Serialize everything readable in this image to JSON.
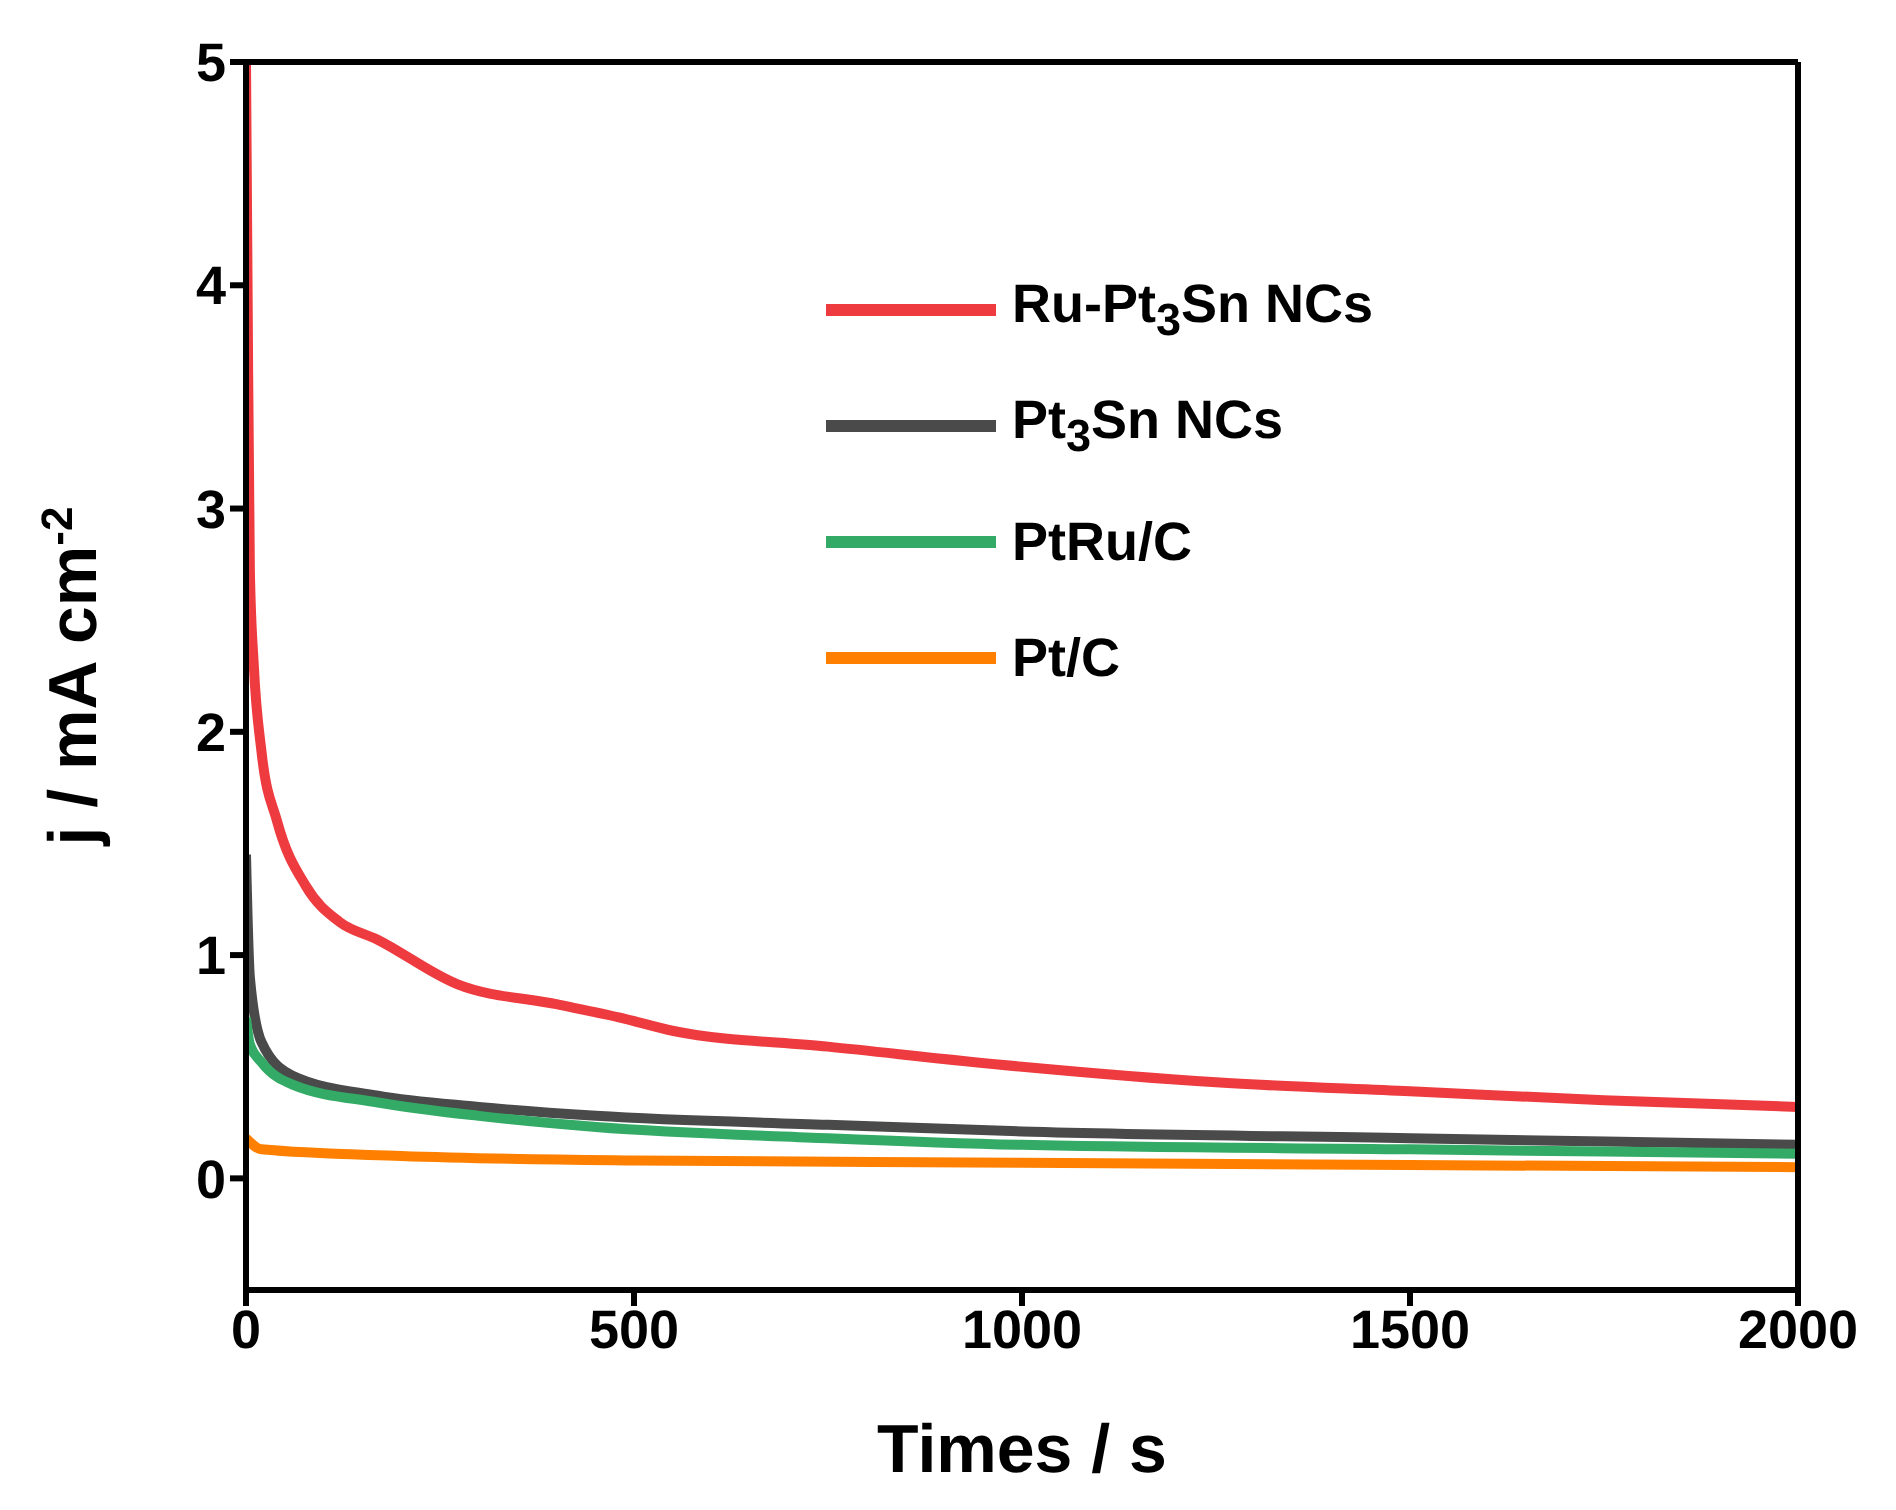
{
  "chart_data": {
    "type": "line",
    "xlabel": "Times / s",
    "ylabel": "j / mA cm$^{-2}$",
    "xlim": [
      0,
      2000
    ],
    "xticks": [
      0,
      500,
      1000,
      1500,
      2000
    ],
    "ylim": [
      -0.5,
      5
    ],
    "yticks": [
      0,
      1,
      2,
      3,
      4,
      5
    ],
    "legend": "top right",
    "marker": "none",
    "line_style": "solid",
    "series": [
      {
        "name": "Ru-Pt$_{3}$Sn NCs",
        "color": "#ee3b3f",
        "x": [
          0,
          2,
          5,
          10,
          20,
          40,
          77,
          120,
          169,
          272,
          400,
          482,
          551,
          750,
          1000,
          1250,
          1500,
          1750,
          2000
        ],
        "values": [
          5.0,
          4.0,
          2.72,
          2.3,
          1.91,
          1.6,
          1.31,
          1.15,
          1.07,
          0.87,
          0.78,
          0.72,
          0.66,
          0.59,
          0.5,
          0.43,
          0.39,
          0.35,
          0.32
        ]
      },
      {
        "name": "Pt$_{3}$Sn NCs",
        "color": "#4a4a4a",
        "x": [
          0,
          5,
          20,
          60,
          170,
          300,
          451,
          750,
          1000,
          1500,
          2000
        ],
        "values": [
          1.45,
          0.9,
          0.61,
          0.46,
          0.37,
          0.32,
          0.28,
          0.24,
          0.21,
          0.18,
          0.15
        ]
      },
      {
        "name": "PtRu/C",
        "color": "#33aa66",
        "x": [
          0,
          5,
          20,
          60,
          170,
          300,
          451,
          750,
          1000,
          1500,
          2000
        ],
        "values": [
          0.72,
          0.6,
          0.52,
          0.42,
          0.34,
          0.28,
          0.23,
          0.18,
          0.15,
          0.13,
          0.11
        ]
      },
      {
        "name": "Pt/C",
        "color": "#ff8000",
        "x": [
          0,
          20,
          200,
          500,
          1000,
          2000
        ],
        "values": [
          0.18,
          0.13,
          0.1,
          0.08,
          0.07,
          0.05
        ]
      }
    ]
  }
}
